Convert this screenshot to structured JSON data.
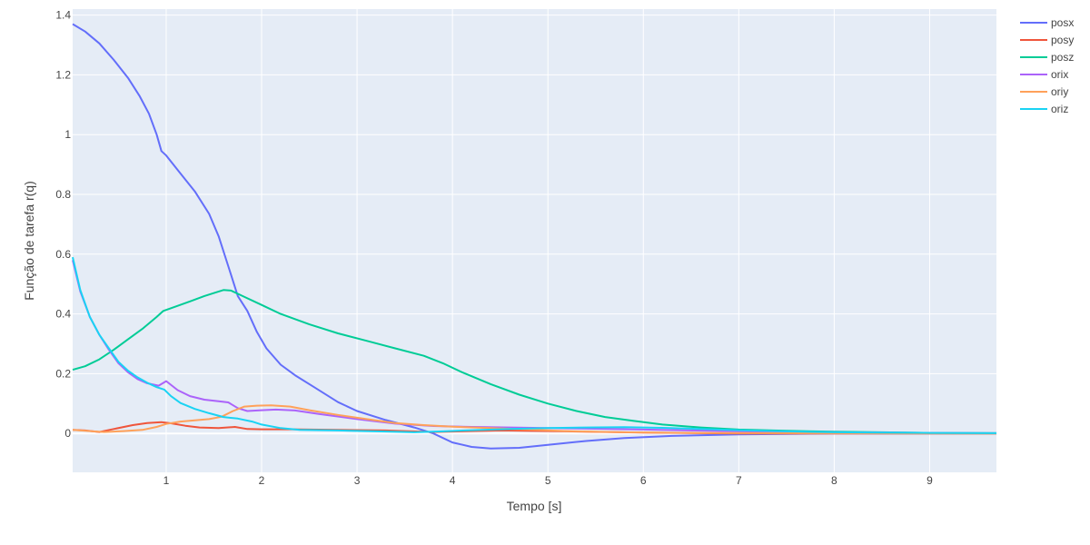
{
  "chart_data": {
    "type": "line",
    "title": "",
    "xlabel": "Tempo [s]",
    "ylabel": "Função de tarefa r(q)",
    "xlim": [
      0.02,
      9.7
    ],
    "ylim": [
      -0.13,
      1.42
    ],
    "xticks": [
      1,
      2,
      3,
      4,
      5,
      6,
      7,
      8,
      9
    ],
    "yticks": [
      0,
      0.2,
      0.4,
      0.6,
      0.8,
      1,
      1.2,
      1.4
    ],
    "ytick_labels": [
      "0",
      "0.2",
      "0.4",
      "0.6",
      "0.8",
      "1",
      "1.2",
      "1.4"
    ],
    "grid": true,
    "legend_position": "top-right",
    "plot_background": "#E5ECF6",
    "series": [
      {
        "name": "posx",
        "color": "#636EFA",
        "points": [
          [
            0.02,
            1.37
          ],
          [
            0.15,
            1.345
          ],
          [
            0.3,
            1.305
          ],
          [
            0.45,
            1.25
          ],
          [
            0.6,
            1.19
          ],
          [
            0.72,
            1.13
          ],
          [
            0.82,
            1.07
          ],
          [
            0.9,
            1.0
          ],
          [
            0.95,
            0.945
          ],
          [
            1.0,
            0.93
          ],
          [
            1.15,
            0.87
          ],
          [
            1.3,
            0.81
          ],
          [
            1.45,
            0.735
          ],
          [
            1.55,
            0.66
          ],
          [
            1.65,
            0.56
          ],
          [
            1.75,
            0.46
          ],
          [
            1.85,
            0.41
          ],
          [
            1.95,
            0.34
          ],
          [
            2.05,
            0.285
          ],
          [
            2.2,
            0.23
          ],
          [
            2.35,
            0.195
          ],
          [
            2.55,
            0.155
          ],
          [
            2.8,
            0.105
          ],
          [
            3.0,
            0.075
          ],
          [
            3.3,
            0.045
          ],
          [
            3.6,
            0.02
          ],
          [
            3.8,
            0.0
          ],
          [
            4.0,
            -0.03
          ],
          [
            4.2,
            -0.045
          ],
          [
            4.4,
            -0.05
          ],
          [
            4.7,
            -0.048
          ],
          [
            5.0,
            -0.038
          ],
          [
            5.4,
            -0.025
          ],
          [
            5.8,
            -0.015
          ],
          [
            6.3,
            -0.008
          ],
          [
            7.0,
            -0.003
          ],
          [
            8.0,
            0.0
          ],
          [
            9.0,
            0.0
          ],
          [
            9.7,
            0.0
          ]
        ]
      },
      {
        "name": "posy",
        "color": "#EF553B",
        "points": [
          [
            0.02,
            0.012
          ],
          [
            0.15,
            0.01
          ],
          [
            0.3,
            0.005
          ],
          [
            0.45,
            0.015
          ],
          [
            0.65,
            0.028
          ],
          [
            0.8,
            0.035
          ],
          [
            0.95,
            0.038
          ],
          [
            1.05,
            0.034
          ],
          [
            1.2,
            0.026
          ],
          [
            1.35,
            0.02
          ],
          [
            1.55,
            0.018
          ],
          [
            1.72,
            0.022
          ],
          [
            1.85,
            0.015
          ],
          [
            2.0,
            0.014
          ],
          [
            2.3,
            0.014
          ],
          [
            2.8,
            0.012
          ],
          [
            3.3,
            0.01
          ],
          [
            3.8,
            0.005
          ],
          [
            4.5,
            0.01
          ],
          [
            5.2,
            0.007
          ],
          [
            6.0,
            0.003
          ],
          [
            7.0,
            0.0
          ],
          [
            9.7,
            0.0
          ]
        ]
      },
      {
        "name": "posz",
        "color": "#00CC96",
        "points": [
          [
            0.02,
            0.213
          ],
          [
            0.15,
            0.225
          ],
          [
            0.3,
            0.248
          ],
          [
            0.45,
            0.28
          ],
          [
            0.6,
            0.315
          ],
          [
            0.75,
            0.35
          ],
          [
            0.9,
            0.39
          ],
          [
            0.97,
            0.41
          ],
          [
            1.1,
            0.425
          ],
          [
            1.25,
            0.442
          ],
          [
            1.4,
            0.46
          ],
          [
            1.52,
            0.472
          ],
          [
            1.6,
            0.48
          ],
          [
            1.68,
            0.478
          ],
          [
            1.8,
            0.46
          ],
          [
            2.0,
            0.43
          ],
          [
            2.2,
            0.4
          ],
          [
            2.5,
            0.365
          ],
          [
            2.8,
            0.335
          ],
          [
            3.1,
            0.31
          ],
          [
            3.4,
            0.285
          ],
          [
            3.7,
            0.26
          ],
          [
            3.9,
            0.235
          ],
          [
            4.1,
            0.205
          ],
          [
            4.4,
            0.165
          ],
          [
            4.7,
            0.13
          ],
          [
            5.0,
            0.1
          ],
          [
            5.3,
            0.075
          ],
          [
            5.6,
            0.055
          ],
          [
            5.9,
            0.042
          ],
          [
            6.2,
            0.03
          ],
          [
            6.6,
            0.02
          ],
          [
            7.0,
            0.013
          ],
          [
            7.5,
            0.009
          ],
          [
            8.0,
            0.006
          ],
          [
            8.5,
            0.004
          ],
          [
            9.0,
            0.002
          ],
          [
            9.7,
            0.001
          ]
        ]
      },
      {
        "name": "orix",
        "color": "#AB63FA",
        "points": [
          [
            0.02,
            0.58
          ],
          [
            0.1,
            0.475
          ],
          [
            0.2,
            0.39
          ],
          [
            0.3,
            0.33
          ],
          [
            0.4,
            0.28
          ],
          [
            0.5,
            0.235
          ],
          [
            0.6,
            0.205
          ],
          [
            0.7,
            0.182
          ],
          [
            0.8,
            0.168
          ],
          [
            0.92,
            0.16
          ],
          [
            1.0,
            0.175
          ],
          [
            1.12,
            0.145
          ],
          [
            1.25,
            0.125
          ],
          [
            1.4,
            0.113
          ],
          [
            1.55,
            0.108
          ],
          [
            1.65,
            0.104
          ],
          [
            1.75,
            0.085
          ],
          [
            1.85,
            0.075
          ],
          [
            2.0,
            0.078
          ],
          [
            2.15,
            0.08
          ],
          [
            2.35,
            0.077
          ],
          [
            2.6,
            0.065
          ],
          [
            3.0,
            0.048
          ],
          [
            3.4,
            0.033
          ],
          [
            3.8,
            0.025
          ],
          [
            4.2,
            0.022
          ],
          [
            4.6,
            0.02
          ],
          [
            5.0,
            0.018
          ],
          [
            5.5,
            0.016
          ],
          [
            6.0,
            0.013
          ],
          [
            6.5,
            0.01
          ],
          [
            7.0,
            0.007
          ],
          [
            8.0,
            0.004
          ],
          [
            9.0,
            0.002
          ],
          [
            9.7,
            0.001
          ]
        ]
      },
      {
        "name": "oriy",
        "color": "#FFA15A",
        "points": [
          [
            0.02,
            0.012
          ],
          [
            0.2,
            0.008
          ],
          [
            0.35,
            0.005
          ],
          [
            0.55,
            0.008
          ],
          [
            0.75,
            0.012
          ],
          [
            0.9,
            0.022
          ],
          [
            1.0,
            0.032
          ],
          [
            1.15,
            0.04
          ],
          [
            1.3,
            0.044
          ],
          [
            1.45,
            0.048
          ],
          [
            1.58,
            0.056
          ],
          [
            1.7,
            0.075
          ],
          [
            1.82,
            0.09
          ],
          [
            1.95,
            0.093
          ],
          [
            2.1,
            0.094
          ],
          [
            2.3,
            0.09
          ],
          [
            2.5,
            0.078
          ],
          [
            2.8,
            0.062
          ],
          [
            3.1,
            0.048
          ],
          [
            3.4,
            0.035
          ],
          [
            3.7,
            0.028
          ],
          [
            4.0,
            0.023
          ],
          [
            4.4,
            0.018
          ],
          [
            4.8,
            0.013
          ],
          [
            5.2,
            0.008
          ],
          [
            5.8,
            0.004
          ],
          [
            6.5,
            0.002
          ],
          [
            7.5,
            0.001
          ],
          [
            9.7,
            0.0
          ]
        ]
      },
      {
        "name": "oriz",
        "color": "#19D3F3",
        "points": [
          [
            0.02,
            0.59
          ],
          [
            0.1,
            0.48
          ],
          [
            0.2,
            0.39
          ],
          [
            0.3,
            0.33
          ],
          [
            0.4,
            0.285
          ],
          [
            0.5,
            0.24
          ],
          [
            0.6,
            0.21
          ],
          [
            0.7,
            0.188
          ],
          [
            0.8,
            0.17
          ],
          [
            0.9,
            0.155
          ],
          [
            0.98,
            0.147
          ],
          [
            1.05,
            0.125
          ],
          [
            1.15,
            0.102
          ],
          [
            1.3,
            0.082
          ],
          [
            1.45,
            0.068
          ],
          [
            1.6,
            0.055
          ],
          [
            1.75,
            0.05
          ],
          [
            1.9,
            0.04
          ],
          [
            2.0,
            0.03
          ],
          [
            2.2,
            0.018
          ],
          [
            2.4,
            0.012
          ],
          [
            2.8,
            0.01
          ],
          [
            3.2,
            0.007
          ],
          [
            3.6,
            0.004
          ],
          [
            3.9,
            0.007
          ],
          [
            4.2,
            0.011
          ],
          [
            4.6,
            0.015
          ],
          [
            5.0,
            0.018
          ],
          [
            5.4,
            0.02
          ],
          [
            5.8,
            0.021
          ],
          [
            6.2,
            0.019
          ],
          [
            6.6,
            0.015
          ],
          [
            7.0,
            0.011
          ],
          [
            7.5,
            0.007
          ],
          [
            8.0,
            0.004
          ],
          [
            8.5,
            0.003
          ],
          [
            9.0,
            0.002
          ],
          [
            9.7,
            0.001
          ]
        ]
      }
    ]
  }
}
